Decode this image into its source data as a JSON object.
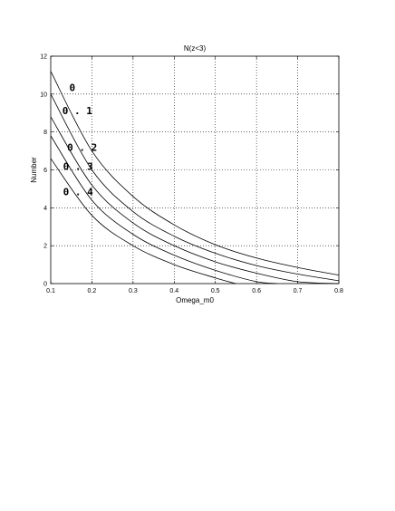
{
  "chart_data": {
    "type": "line",
    "title": "N(z<3)",
    "xlabel": "Omega_m0",
    "ylabel": "Number",
    "xlim": [
      0.1,
      0.8
    ],
    "ylim": [
      0,
      12
    ],
    "grid": true,
    "x_ticks": [
      "0.1",
      "0.2",
      "0.3",
      "0.4",
      "0.5",
      "0.6",
      "0.7",
      "0.8"
    ],
    "y_ticks": [
      "0",
      "2",
      "4",
      "6",
      "8",
      "10",
      "12"
    ],
    "series": [
      {
        "name": "0",
        "x": [
          0.1,
          0.2,
          0.3,
          0.4,
          0.5,
          0.6,
          0.7,
          0.8
        ],
        "y": [
          11.2,
          7.0,
          4.6,
          3.1,
          2.05,
          1.35,
          0.85,
          0.45
        ]
      },
      {
        "name": "0.1",
        "x": [
          0.1,
          0.2,
          0.3,
          0.4,
          0.5,
          0.6,
          0.7,
          0.8
        ],
        "y": [
          10.0,
          6.0,
          3.8,
          2.5,
          1.6,
          0.95,
          0.5,
          0.15
        ]
      },
      {
        "name": "0.2",
        "x": [
          0.1,
          0.2,
          0.3,
          0.4,
          0.5,
          0.6,
          0.7,
          0.8
        ],
        "y": [
          8.8,
          5.2,
          3.2,
          2.0,
          1.15,
          0.55,
          0.1,
          0.0
        ]
      },
      {
        "name": "0.3",
        "x": [
          0.1,
          0.2,
          0.3,
          0.4,
          0.5,
          0.6,
          0.65
        ],
        "y": [
          7.8,
          4.4,
          2.6,
          1.5,
          0.7,
          0.1,
          0.0
        ]
      },
      {
        "name": "0.4",
        "x": [
          0.1,
          0.2,
          0.3,
          0.4,
          0.5,
          0.55
        ],
        "y": [
          6.6,
          3.6,
          2.0,
          1.0,
          0.3,
          0.0
        ]
      }
    ],
    "curve_labels": [
      {
        "text": "0",
        "x": 0.145,
        "y": 10.15
      },
      {
        "text": "0.1",
        "x": 0.128,
        "y": 8.95
      },
      {
        "text": "0.2",
        "x": 0.14,
        "y": 7.0
      },
      {
        "text": "0.3",
        "x": 0.13,
        "y": 6.0
      },
      {
        "text": "0.4",
        "x": 0.13,
        "y": 4.65
      }
    ]
  }
}
